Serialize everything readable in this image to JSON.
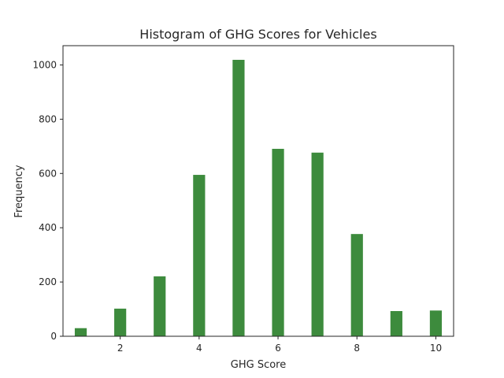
{
  "chart_data": {
    "type": "bar",
    "title": "Histogram of GHG Scores for Vehicles",
    "xlabel": "GHG Score",
    "ylabel": "Frequency",
    "bars": [
      {
        "x": 1,
        "value": 31
      },
      {
        "x": 2,
        "value": 103
      },
      {
        "x": 3,
        "value": 222
      },
      {
        "x": 4,
        "value": 596
      },
      {
        "x": 5,
        "value": 1020
      },
      {
        "x": 6,
        "value": 692
      },
      {
        "x": 7,
        "value": 678
      },
      {
        "x": 8,
        "value": 378
      },
      {
        "x": 9,
        "value": 94
      },
      {
        "x": 10,
        "value": 96
      }
    ],
    "xlim": [
      0.55,
      10.45
    ],
    "ylim": [
      0,
      1071
    ],
    "xticks": [
      2,
      4,
      6,
      8,
      10
    ],
    "yticks": [
      0,
      200,
      400,
      600,
      800,
      1000
    ],
    "bar_color": "#3d8b3d",
    "bar_edge_color": "#ffffff",
    "grid": false,
    "legend": "none"
  }
}
